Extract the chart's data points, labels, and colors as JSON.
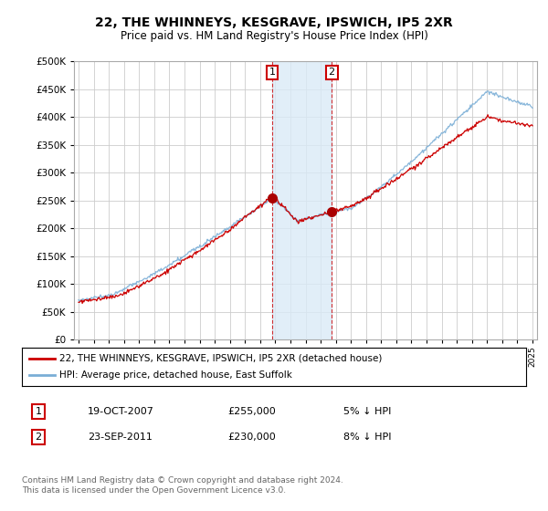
{
  "title": "22, THE WHINNEYS, KESGRAVE, IPSWICH, IP5 2XR",
  "subtitle": "Price paid vs. HM Land Registry's House Price Index (HPI)",
  "x_start_year": 1995,
  "x_end_year": 2025,
  "y_min": 0,
  "y_max": 500000,
  "y_ticks": [
    0,
    50000,
    100000,
    150000,
    200000,
    250000,
    300000,
    350000,
    400000,
    450000,
    500000
  ],
  "sale1_year": 2007.8,
  "sale1_value": 255000,
  "sale1_label": "1",
  "sale2_year": 2011.73,
  "sale2_value": 230000,
  "sale2_label": "2",
  "hpi_color": "#7aaed6",
  "price_color": "#cc0000",
  "sale_marker_color": "#aa0000",
  "grid_color": "#cccccc",
  "background_color": "#ffffff",
  "span_color": "#daeaf7",
  "legend_line1": "22, THE WHINNEYS, KESGRAVE, IPSWICH, IP5 2XR (detached house)",
  "legend_line2": "HPI: Average price, detached house, East Suffolk",
  "table_row1_num": "1",
  "table_row1_date": "19-OCT-2007",
  "table_row1_price": "£255,000",
  "table_row1_hpi": "5% ↓ HPI",
  "table_row2_num": "2",
  "table_row2_date": "23-SEP-2011",
  "table_row2_price": "£230,000",
  "table_row2_hpi": "8% ↓ HPI",
  "footer": "Contains HM Land Registry data © Crown copyright and database right 2024.\nThis data is licensed under the Open Government Licence v3.0."
}
